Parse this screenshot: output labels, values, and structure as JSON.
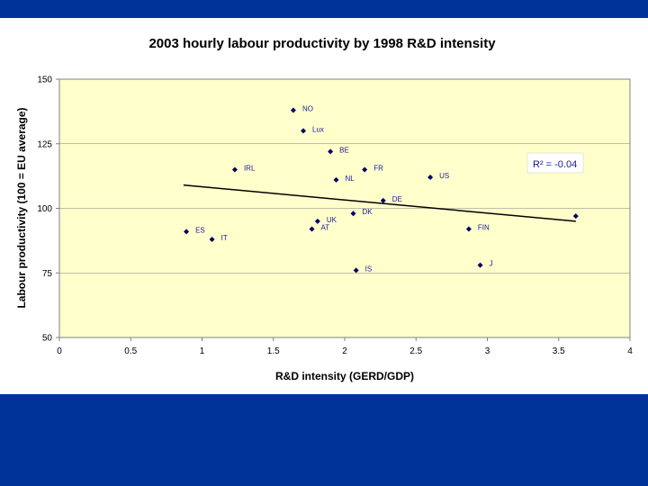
{
  "slide": {
    "top_band_color": "#003399",
    "bottom_band_color": "#003399"
  },
  "chart_data": {
    "type": "scatter",
    "title": "2003 hourly labour productivity by 1998 R&D intensity",
    "xlabel": "R&D intensity (GERD/GDP)",
    "ylabel": "Labour productivity (100 = EU average)",
    "xlim": [
      0,
      4
    ],
    "ylim": [
      50,
      150
    ],
    "x_ticks": [
      "0",
      "0.5",
      "1",
      "1.5",
      "2",
      "2.5",
      "3",
      "3.5",
      "4"
    ],
    "y_ticks": [
      "50",
      "75",
      "100",
      "125",
      "150"
    ],
    "grid": "horizontal",
    "plot_background": "#FFFFCC",
    "marker_color": "#000066",
    "label_color": "#1a1a99",
    "points": [
      {
        "label": "NO",
        "x": 1.64,
        "y": 138
      },
      {
        "label": "Lux",
        "x": 1.71,
        "y": 130
      },
      {
        "label": "BE",
        "x": 1.9,
        "y": 122
      },
      {
        "label": "IRL",
        "x": 1.23,
        "y": 115
      },
      {
        "label": "FR",
        "x": 2.14,
        "y": 115
      },
      {
        "label": "NL",
        "x": 1.94,
        "y": 111
      },
      {
        "label": "US",
        "x": 2.6,
        "y": 112
      },
      {
        "label": "DE",
        "x": 2.27,
        "y": 103
      },
      {
        "label": "UK",
        "x": 1.81,
        "y": 95
      },
      {
        "label": "DK",
        "x": 2.06,
        "y": 98
      },
      {
        "label": "AT",
        "x": 1.77,
        "y": 92
      },
      {
        "label": "ES",
        "x": 0.89,
        "y": 91
      },
      {
        "label": "IT",
        "x": 1.07,
        "y": 88
      },
      {
        "label": "FIN",
        "x": 2.87,
        "y": 92
      },
      {
        "label": "",
        "x": 3.62,
        "y": 97
      },
      {
        "label": "IS",
        "x": 2.08,
        "y": 76
      },
      {
        "label": "J",
        "x": 2.95,
        "y": 78
      }
    ],
    "trendline": {
      "x": [
        0.87,
        3.62
      ],
      "y": [
        109,
        95
      ]
    },
    "annotation": {
      "text": "R² = -0.04"
    }
  }
}
